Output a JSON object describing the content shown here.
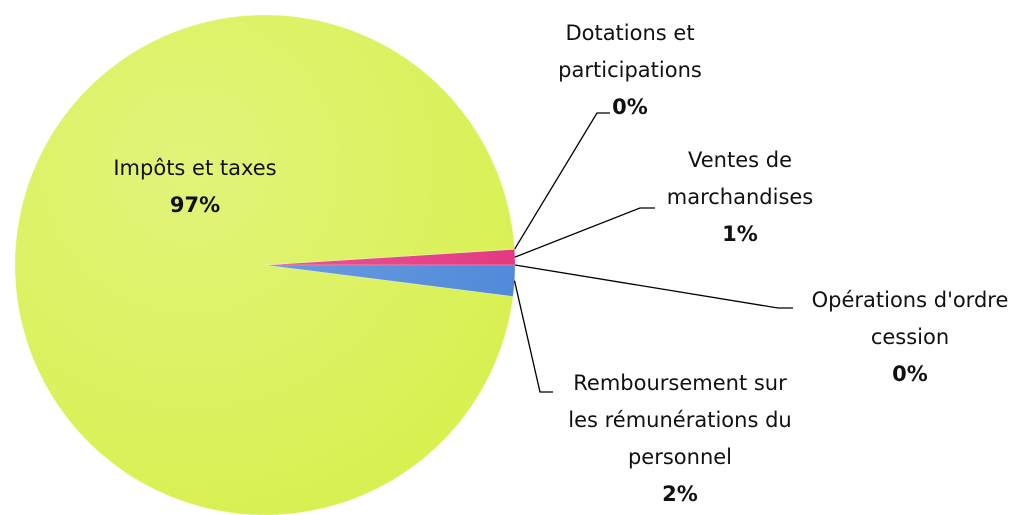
{
  "chart_data": {
    "type": "pie",
    "categories": [
      "Opérations d'ordre cession",
      "Ventes de marchandises",
      "Dotations et participations",
      "Impôts et taxes",
      "Remboursement sur les rémunérations du personnel"
    ],
    "values": [
      0,
      1,
      0,
      97,
      2
    ],
    "value_labels": [
      "0%",
      "1%",
      "0%",
      "97%",
      "2%"
    ],
    "colors": [
      "#8a6cc0",
      "#e2327c",
      "#e07a30",
      "#d8f04e",
      "#4a86d8"
    ]
  }
}
